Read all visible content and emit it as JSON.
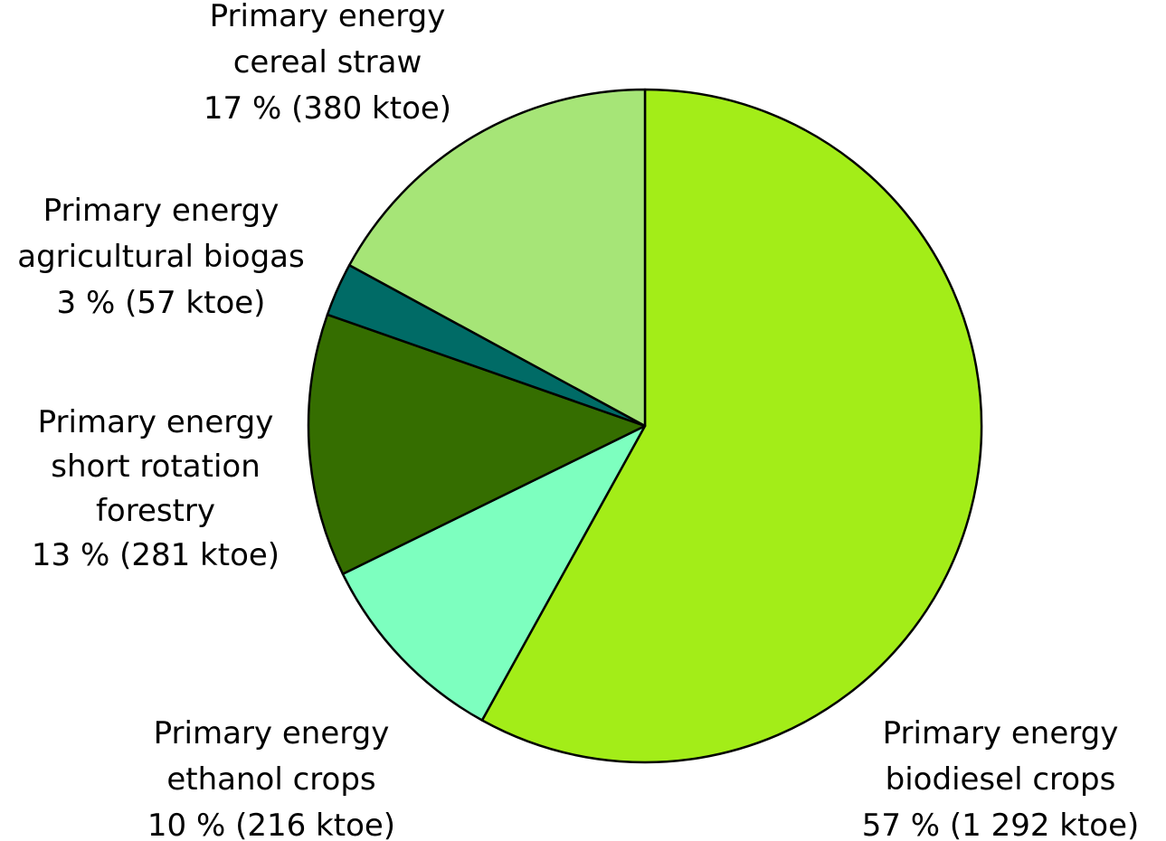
{
  "chart_data": {
    "type": "pie",
    "title": "",
    "start_angle_deg": 0,
    "direction": "clockwise",
    "slices": [
      {
        "name": "Primary energy biodiesel crops",
        "value": 1292,
        "percent": 57,
        "label_lines": [
          "Primary energy",
          "biodiesel crops",
          "57 % (1 292 ktoe)"
        ],
        "color": "#a3ed18"
      },
      {
        "name": "Primary energy ethanol crops",
        "value": 216,
        "percent": 10,
        "label_lines": [
          "Primary energy",
          "ethanol crops",
          "10 % (216 ktoe)"
        ],
        "color": "#7dffbf"
      },
      {
        "name": "Primary energy short rotation forestry",
        "value": 281,
        "percent": 13,
        "label_lines": [
          "Primary energy",
          "short rotation",
          "forestry",
          "13 % (281 ktoe)"
        ],
        "color": "#356e00"
      },
      {
        "name": "Primary energy agricultural biogas",
        "value": 57,
        "percent": 3,
        "label_lines": [
          "Primary energy",
          "agricultural biogas",
          "3 % (57 ktoe)"
        ],
        "color": "#006b66"
      },
      {
        "name": "Primary energy cereal straw",
        "value": 380,
        "percent": 17,
        "label_lines": [
          "Primary energy",
          "cereal straw",
          "17 % (380 ktoe)"
        ],
        "color": "#a6e577"
      }
    ]
  }
}
